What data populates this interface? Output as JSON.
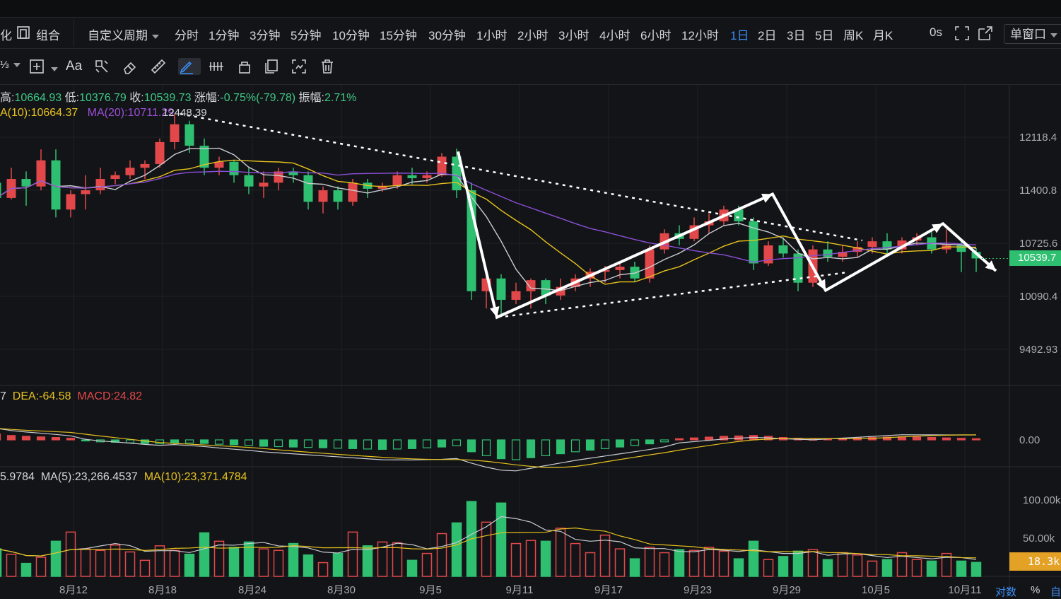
{
  "toolbar": {
    "left_partial": "化",
    "combine_label": "组合",
    "custom_period": "自定义周期",
    "periods": [
      "分时",
      "1分钟",
      "3分钟",
      "5分钟",
      "10分钟",
      "15分钟",
      "30分钟",
      "1小时",
      "2小时",
      "3小时",
      "4小时",
      "6小时",
      "12小时",
      "1日",
      "2日",
      "3日",
      "5日",
      "周K",
      "月K"
    ],
    "active_period": "1日",
    "countdown": "0s",
    "window_mode": "单窗口",
    "font_tool": "Aa",
    "partial_left2": "⅓"
  },
  "legend": {
    "high_label": "高:",
    "high": "10664.93",
    "low_label": "低:",
    "low": "10376.79",
    "close_label": "收:",
    "close": "10539.73",
    "change_label": "涨幅:",
    "change": "-0.75%(-79.78)",
    "amp_label": "振幅:",
    "amp": "2.71%",
    "ma10": "A(10):10664.37",
    "ma20": "MA(20):10711.29",
    "high_marker": "12448.39"
  },
  "macd_legend": {
    "prefix": "7",
    "dea": "DEA:-64.58",
    "macd": "MACD:24.82"
  },
  "vol_legend": {
    "prefix": "5.9784",
    "ma5": "MA(5):23,266.4537",
    "ma10": "MA(10):23,371.4784"
  },
  "price_tag": "10539.7",
  "vol_tag": "18.3k",
  "bottom_right": {
    "log": "对数",
    "pct": "%",
    "auto": "自"
  },
  "colors": {
    "up": "#e2484a",
    "down": "#2fbf71",
    "ma5": "#c9ccd2",
    "ma10": "#e6c21e",
    "ma20": "#8a4fd8",
    "background": "#131417"
  },
  "chart_data": {
    "type": "candlestick",
    "x_ticks": [
      "8月12",
      "8月18",
      "8月24",
      "8月30",
      "9月5",
      "9月11",
      "9月17",
      "9月23",
      "9月29",
      "10月5",
      "10月11"
    ],
    "price_axis_labels": [
      "12118.4",
      "11400.8",
      "10725.6",
      "10090.4",
      "9492.93"
    ],
    "price_ticks": [
      12118.4,
      11400.8,
      10725.6,
      10090.4,
      9492.93
    ],
    "macd_axis_labels": [
      "0.00"
    ],
    "volume_axis_labels": [
      "100.00k",
      "50.00k"
    ],
    "volume_ticks": [
      100000,
      50000
    ],
    "candles": [
      {
        "o": 11500,
        "h": 11550,
        "l": 11150,
        "c": 11300
      },
      {
        "o": 11300,
        "h": 11700,
        "l": 11280,
        "c": 11550
      },
      {
        "o": 11550,
        "h": 11650,
        "l": 11200,
        "c": 11450
      },
      {
        "o": 11450,
        "h": 11950,
        "l": 11400,
        "c": 11800
      },
      {
        "o": 11800,
        "h": 11950,
        "l": 11050,
        "c": 11150
      },
      {
        "o": 11150,
        "h": 11400,
        "l": 11050,
        "c": 11350
      },
      {
        "o": 11350,
        "h": 11600,
        "l": 11150,
        "c": 11400
      },
      {
        "o": 11400,
        "h": 11700,
        "l": 11350,
        "c": 11550
      },
      {
        "o": 11550,
        "h": 11650,
        "l": 11480,
        "c": 11600
      },
      {
        "o": 11600,
        "h": 11800,
        "l": 11550,
        "c": 11700
      },
      {
        "o": 11700,
        "h": 11800,
        "l": 11550,
        "c": 11750
      },
      {
        "o": 11750,
        "h": 12100,
        "l": 11700,
        "c": 12050
      },
      {
        "o": 12050,
        "h": 12448,
        "l": 11950,
        "c": 12300
      },
      {
        "o": 12300,
        "h": 12350,
        "l": 11900,
        "c": 12000
      },
      {
        "o": 12000,
        "h": 12100,
        "l": 11600,
        "c": 11700
      },
      {
        "o": 11700,
        "h": 11850,
        "l": 11600,
        "c": 11780
      },
      {
        "o": 11780,
        "h": 11800,
        "l": 11500,
        "c": 11600
      },
      {
        "o": 11600,
        "h": 11700,
        "l": 11350,
        "c": 11450
      },
      {
        "o": 11450,
        "h": 11650,
        "l": 11300,
        "c": 11500
      },
      {
        "o": 11500,
        "h": 11700,
        "l": 11400,
        "c": 11650
      },
      {
        "o": 11650,
        "h": 11700,
        "l": 11500,
        "c": 11600
      },
      {
        "o": 11600,
        "h": 11650,
        "l": 11150,
        "c": 11250
      },
      {
        "o": 11250,
        "h": 11450,
        "l": 11100,
        "c": 11400
      },
      {
        "o": 11400,
        "h": 11450,
        "l": 11150,
        "c": 11250
      },
      {
        "o": 11250,
        "h": 11550,
        "l": 11200,
        "c": 11500
      },
      {
        "o": 11500,
        "h": 11550,
        "l": 11300,
        "c": 11420
      },
      {
        "o": 11420,
        "h": 11500,
        "l": 11380,
        "c": 11460
      },
      {
        "o": 11460,
        "h": 11650,
        "l": 11420,
        "c": 11600
      },
      {
        "o": 11600,
        "h": 11700,
        "l": 11480,
        "c": 11560
      },
      {
        "o": 11560,
        "h": 11650,
        "l": 11500,
        "c": 11600
      },
      {
        "o": 11600,
        "h": 11900,
        "l": 11580,
        "c": 11850
      },
      {
        "o": 11850,
        "h": 11960,
        "l": 11300,
        "c": 11400
      },
      {
        "o": 11400,
        "h": 11500,
        "l": 10050,
        "c": 10150
      },
      {
        "o": 10150,
        "h": 10400,
        "l": 9950,
        "c": 10300
      },
      {
        "o": 10300,
        "h": 10350,
        "l": 9850,
        "c": 10050
      },
      {
        "o": 10050,
        "h": 10250,
        "l": 10000,
        "c": 10150
      },
      {
        "o": 10150,
        "h": 10300,
        "l": 9950,
        "c": 10280
      },
      {
        "o": 10280,
        "h": 10300,
        "l": 10000,
        "c": 10100
      },
      {
        "o": 10100,
        "h": 10300,
        "l": 10050,
        "c": 10200
      },
      {
        "o": 10200,
        "h": 10350,
        "l": 10150,
        "c": 10300
      },
      {
        "o": 10300,
        "h": 10420,
        "l": 10200,
        "c": 10380
      },
      {
        "o": 10380,
        "h": 10450,
        "l": 10250,
        "c": 10400
      },
      {
        "o": 10400,
        "h": 10500,
        "l": 10300,
        "c": 10440
      },
      {
        "o": 10440,
        "h": 10500,
        "l": 10260,
        "c": 10300
      },
      {
        "o": 10300,
        "h": 10700,
        "l": 10250,
        "c": 10650
      },
      {
        "o": 10650,
        "h": 10900,
        "l": 10600,
        "c": 10850
      },
      {
        "o": 10850,
        "h": 10950,
        "l": 10700,
        "c": 10780
      },
      {
        "o": 10780,
        "h": 11050,
        "l": 10750,
        "c": 10950
      },
      {
        "o": 10950,
        "h": 11100,
        "l": 10850,
        "c": 11000
      },
      {
        "o": 11000,
        "h": 11200,
        "l": 10950,
        "c": 11150
      },
      {
        "o": 11150,
        "h": 11200,
        "l": 10950,
        "c": 11000
      },
      {
        "o": 11000,
        "h": 11050,
        "l": 10400,
        "c": 10480
      },
      {
        "o": 10480,
        "h": 10750,
        "l": 10450,
        "c": 10700
      },
      {
        "o": 10700,
        "h": 10800,
        "l": 10550,
        "c": 10600
      },
      {
        "o": 10600,
        "h": 10650,
        "l": 10150,
        "c": 10250
      },
      {
        "o": 10250,
        "h": 10700,
        "l": 10200,
        "c": 10650
      },
      {
        "o": 10650,
        "h": 10750,
        "l": 10500,
        "c": 10560
      },
      {
        "o": 10560,
        "h": 10700,
        "l": 10500,
        "c": 10620
      },
      {
        "o": 10620,
        "h": 10750,
        "l": 10550,
        "c": 10680
      },
      {
        "o": 10680,
        "h": 10800,
        "l": 10600,
        "c": 10750
      },
      {
        "o": 10750,
        "h": 10850,
        "l": 10600,
        "c": 10650
      },
      {
        "o": 10650,
        "h": 10800,
        "l": 10600,
        "c": 10760
      },
      {
        "o": 10760,
        "h": 10850,
        "l": 10700,
        "c": 10800
      },
      {
        "o": 10800,
        "h": 10900,
        "l": 10600,
        "c": 10650
      },
      {
        "o": 10650,
        "h": 10900,
        "l": 10600,
        "c": 10700
      },
      {
        "o": 10700,
        "h": 10750,
        "l": 10376,
        "c": 10620
      },
      {
        "o": 10620,
        "h": 10665,
        "l": 10377,
        "c": 10540
      }
    ],
    "macd_hist": [
      30,
      22,
      18,
      15,
      12,
      8,
      -5,
      -10,
      -12,
      -15,
      -18,
      -20,
      -14,
      -16,
      -18,
      -22,
      -25,
      -28,
      -32,
      -34,
      -36,
      -38,
      -40,
      -42,
      -44,
      -46,
      -48,
      -46,
      -44,
      -40,
      -36,
      -30,
      -60,
      -80,
      -95,
      -100,
      -90,
      -80,
      -70,
      -60,
      -52,
      -44,
      -36,
      -28,
      -20,
      -10,
      6,
      10,
      14,
      18,
      20,
      22,
      18,
      12,
      8,
      4,
      6,
      8,
      10,
      12,
      14,
      16,
      14,
      12,
      10,
      8,
      6
    ],
    "volume": [
      36000,
      29000,
      17000,
      25000,
      46000,
      58000,
      36000,
      34000,
      41000,
      32000,
      21000,
      40000,
      34000,
      29000,
      57000,
      46000,
      38000,
      45000,
      36000,
      34000,
      43000,
      28000,
      18000,
      30000,
      58000,
      40000,
      45000,
      44000,
      21000,
      30000,
      56000,
      70000,
      98000,
      71000,
      96000,
      43000,
      47000,
      46000,
      63000,
      43000,
      31000,
      54000,
      36000,
      23000,
      38000,
      31000,
      35000,
      34000,
      38000,
      33000,
      23000,
      46000,
      22000,
      26000,
      33000,
      35000,
      22000,
      31000,
      28000,
      20000,
      22000,
      31000,
      22000,
      20000,
      30000,
      20000,
      18300
    ],
    "annotations": [
      "resistance trendline",
      "support trendline",
      "wave arrows"
    ]
  }
}
